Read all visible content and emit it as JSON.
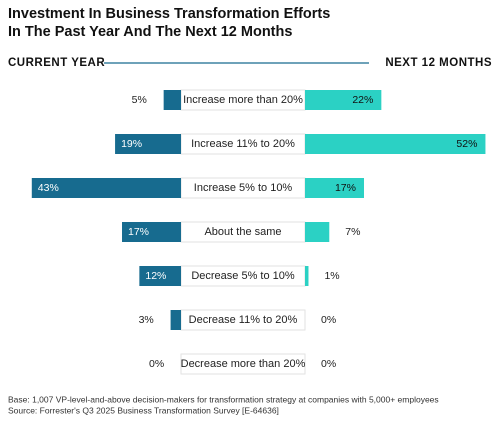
{
  "chart_data": {
    "type": "butterfly",
    "title": [
      "Investment In Business Transformation Efforts",
      "In The Past Year And The Next 12 Months"
    ],
    "categories": [
      "Increase more than 20%",
      "Increase 11% to 20%",
      "Increase 5% to 10%",
      "About the same",
      "Decrease 5% to 10%",
      "Decrease 11% to 20%",
      "Decrease more than 20%"
    ],
    "series": [
      {
        "name": "CURRENT YEAR",
        "color": "#176b8f",
        "values": [
          5,
          19,
          43,
          17,
          12,
          3,
          0
        ],
        "value_labels": [
          "5%",
          "19%",
          "43%",
          "17%",
          "12%",
          "3%",
          "0%"
        ]
      },
      {
        "name": "NEXT 12 MONTHS",
        "color": "#2bd1c4",
        "values": [
          22,
          52,
          17,
          7,
          1,
          0,
          0
        ],
        "value_labels": [
          "22%",
          "52%",
          "17%",
          "7%",
          "1%",
          "0%",
          "0%"
        ]
      }
    ],
    "notes": [
      "Base: 1,007 VP-level-and-above decision-makers for transformation strategy at companies with 5,000+ employees",
      "Source: Forrester's Q3 2025 Business Transformation Survey [E-64636]"
    ]
  }
}
